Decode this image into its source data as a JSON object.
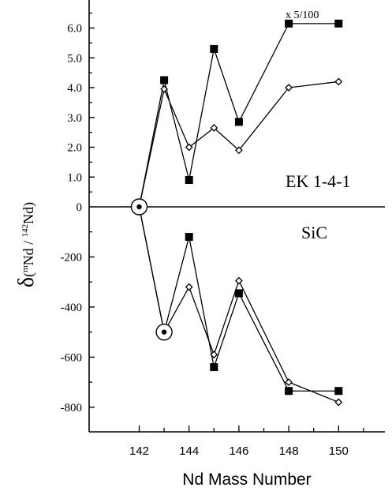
{
  "chart_data": [
    {
      "type": "line",
      "panel": "top",
      "label": "EK 1-4-1",
      "annotation": "x  5/100",
      "x": [
        142,
        143,
        144,
        145,
        146,
        148,
        150
      ],
      "ylim": [
        0,
        7
      ],
      "yticks": [
        "0",
        "1.0",
        "2.0",
        "3.0",
        "4.0",
        "5.0",
        "6.0"
      ],
      "ytick_values": [
        0,
        1,
        2,
        3,
        4,
        5,
        6
      ],
      "series": [
        {
          "marker": "filled-square",
          "x": [
            142,
            143,
            144,
            145,
            146,
            148,
            150
          ],
          "values": [
            0,
            4.25,
            0.9,
            5.3,
            2.85,
            6.15,
            6.15
          ]
        },
        {
          "marker": "open-diamond",
          "x": [
            142,
            143,
            144,
            145,
            146,
            148,
            150
          ],
          "values": [
            0,
            3.95,
            2.0,
            2.65,
            1.9,
            4.0,
            4.2
          ]
        }
      ]
    },
    {
      "type": "line",
      "panel": "bottom",
      "label": "SiC",
      "x": [
        142,
        143,
        144,
        145,
        146,
        148,
        150
      ],
      "ylim": [
        -900,
        0
      ],
      "yticks": [
        "-200",
        "-400",
        "-600",
        "-800"
      ],
      "ytick_values": [
        -200,
        -400,
        -600,
        -800
      ],
      "series": [
        {
          "marker": "filled-square",
          "x": [
            142,
            143,
            144,
            145,
            146,
            148,
            150
          ],
          "values": [
            0,
            -500,
            -120,
            -640,
            -345,
            -735,
            -735
          ]
        },
        {
          "marker": "open-diamond",
          "x": [
            142,
            143,
            144,
            145,
            146,
            148,
            150
          ],
          "values": [
            0,
            -500,
            -320,
            -590,
            -295,
            -700,
            -780
          ]
        }
      ]
    }
  ],
  "axes": {
    "xlabel": "Nd Mass Number",
    "xticks": [
      "142",
      "144",
      "146",
      "148",
      "150"
    ],
    "xtick_values": [
      142,
      144,
      146,
      148,
      150
    ],
    "ylabel_delta": "δ",
    "ylabel_open": "(",
    "ylabel_sup1": "m",
    "ylabel_mid": "Nd / ",
    "ylabel_sup2": "142",
    "ylabel_close": "Nd)"
  },
  "normalization_markers": [
    {
      "x": 142,
      "y": 0,
      "panel": "top"
    },
    {
      "x": 143,
      "y": -500,
      "panel": "bottom"
    }
  ],
  "colors": {
    "ink": "#000000",
    "background": "#ffffff"
  }
}
